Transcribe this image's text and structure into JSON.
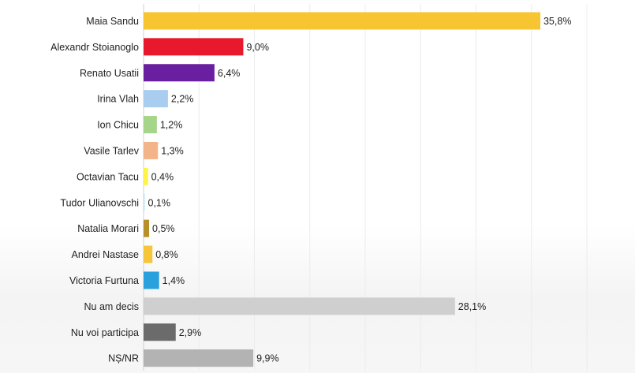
{
  "chart_data": {
    "type": "bar",
    "orientation": "horizontal",
    "title": "",
    "xlabel": "",
    "ylabel": "",
    "xlim": [
      0,
      40
    ],
    "grid": true,
    "legend": "none",
    "categories": [
      "Maia Sandu",
      "Alexandr Stoianoglo",
      "Renato Usatii",
      "Irina Vlah",
      "Ion Chicu",
      "Vasile Tarlev",
      "Octavian Tacu",
      "Tudor Ulianovschi",
      "Natalia Morari",
      "Andrei Nastase",
      "Victoria Furtuna",
      "Nu am decis",
      "Nu voi participa",
      "NȘ/NR"
    ],
    "values": [
      35.8,
      9.0,
      6.4,
      2.2,
      1.2,
      1.3,
      0.4,
      0.1,
      0.5,
      0.8,
      1.4,
      28.1,
      2.9,
      9.9
    ],
    "value_labels": [
      "35,8%",
      "9,0%",
      "6,4%",
      "2,2%",
      "1,2%",
      "1,3%",
      "0,4%",
      "0,1%",
      "0,5%",
      "0,8%",
      "1,4%",
      "28,1%",
      "2,9%",
      "9,9%"
    ],
    "colors": [
      "#f7c531",
      "#e8192c",
      "#6a1fa0",
      "#a9cdee",
      "#a6d488",
      "#f4b48a",
      "#fff34a",
      "#bde8f0",
      "#b8902a",
      "#f5c63a",
      "#2aa0dc",
      "#cfcfcf",
      "#6b6b6b",
      "#b3b3b3"
    ]
  }
}
